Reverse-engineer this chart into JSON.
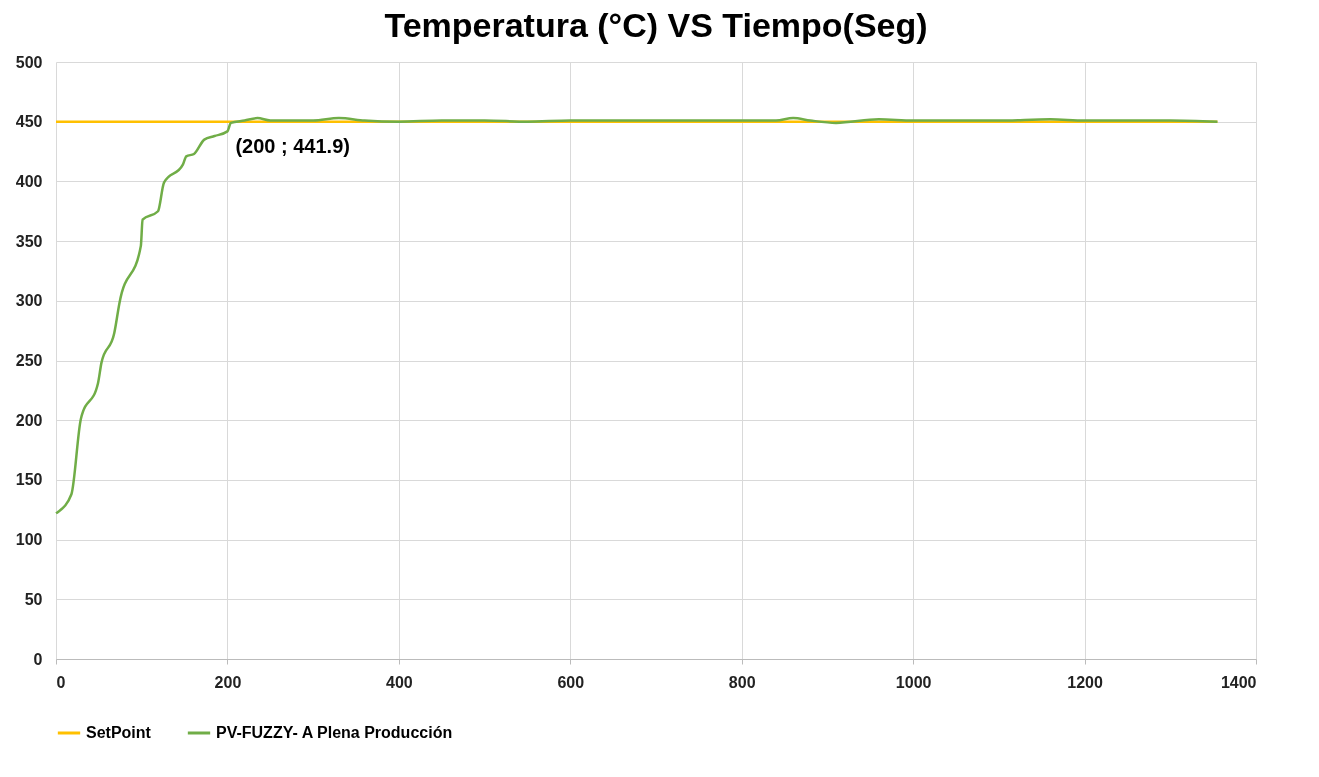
{
  "chart_data": {
    "type": "line",
    "title": "Temperatura (°C) VS Tiempo(Seg)",
    "xlim": [
      0,
      1400
    ],
    "xticks": [
      0,
      200,
      400,
      600,
      800,
      1000,
      1200,
      1400
    ],
    "ylim": [
      0,
      500
    ],
    "yticks": [
      0,
      50,
      100,
      150,
      200,
      250,
      300,
      350,
      400,
      450,
      500
    ],
    "grid": true,
    "legend": "bottom",
    "marker": "none",
    "line_style": "solid",
    "annotations": [
      {
        "text": "(200 ; 441.9)",
        "x": 200,
        "y": 441.9
      }
    ],
    "series": [
      {
        "name": "SetPoint",
        "color": "#ffc000",
        "x": [
          0,
          1355
        ],
        "values": [
          450,
          450
        ]
      },
      {
        "name": "PV-FUZZY- A Plena Producción",
        "color": "#70ad47",
        "x": [
          0,
          2,
          18,
          29,
          49,
          53,
          68,
          74,
          99,
          101,
          119,
          126,
          148,
          152,
          161,
          173,
          185,
          200,
          204,
          220,
          235,
          250,
          300,
          330,
          360,
          400,
          450,
          500,
          550,
          600,
          650,
          700,
          750,
          800,
          840,
          860,
          880,
          910,
          960,
          1000,
          1050,
          1100,
          1160,
          1200,
          1250,
          1300,
          1355
        ],
        "values": [
          122,
          123,
          138,
          201,
          231,
          248,
          273,
          298,
          346,
          368,
          375,
          399,
          414,
          421,
          423,
          435,
          438,
          441.9,
          449,
          451,
          453,
          451,
          451,
          453,
          451,
          450,
          451,
          451,
          450,
          451,
          451,
          451,
          451,
          451,
          451,
          453,
          451,
          449,
          452,
          451,
          451,
          451,
          452,
          451,
          451,
          451,
          450
        ]
      }
    ]
  }
}
